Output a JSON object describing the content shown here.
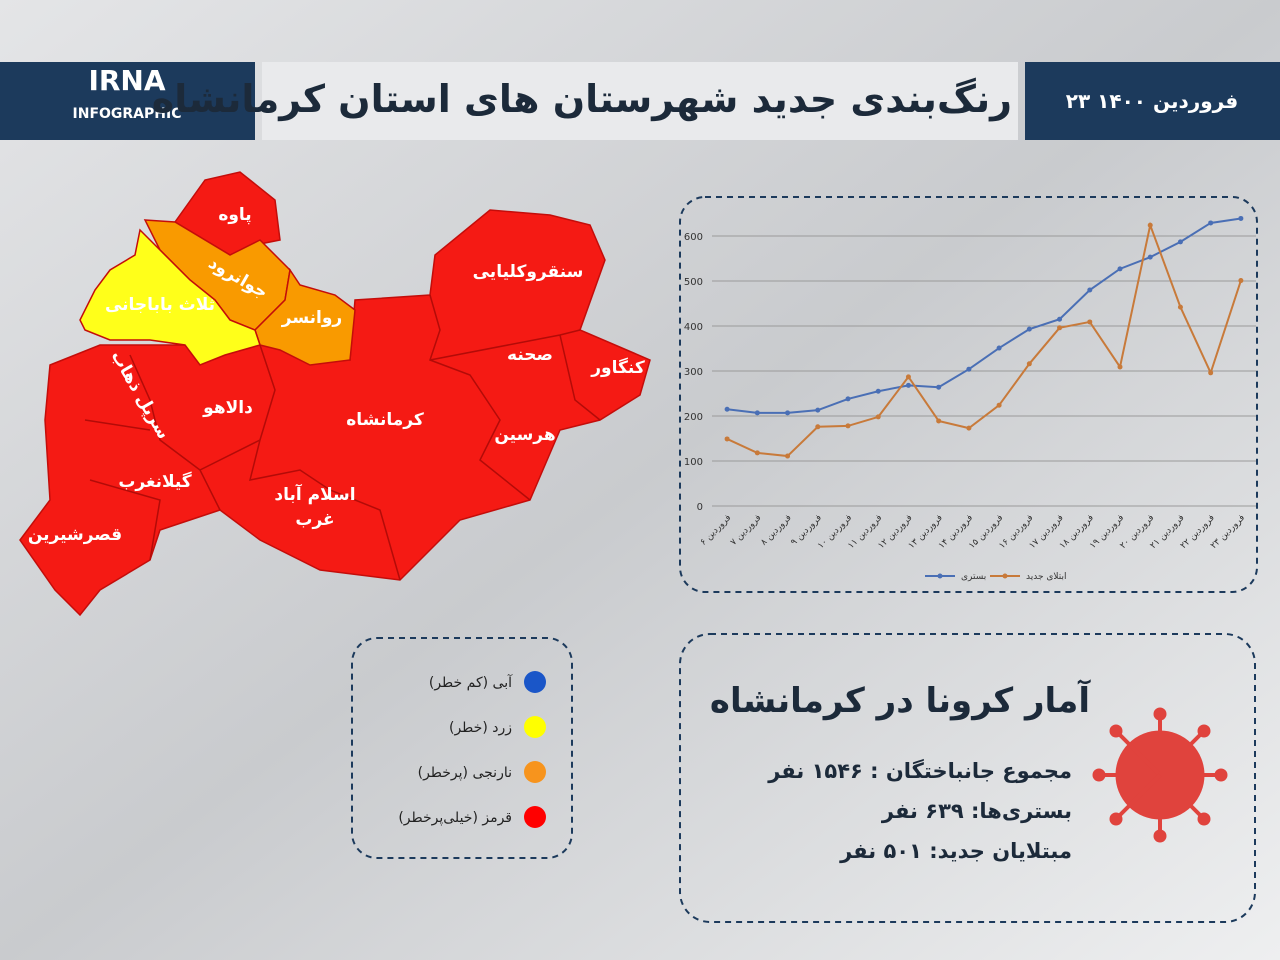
{
  "header": {
    "logo": "IRNA",
    "logo_sub": "INFOGRAPHIC",
    "title": "رنگ‌بندی جدید شهرستان های استان کرمانشاه",
    "date": "۲۳ فروردین ۱۴۰۰"
  },
  "map": {
    "labels": [
      "پاوه",
      "جوانرود",
      "ثلاث باباجانی",
      "روانسر",
      "سنقروکلیایی",
      "صحنه",
      "کنگاور",
      "سرپل ذهاب",
      "دالاهو",
      "کرمانشاه",
      "هرسین",
      "گیلانغرب",
      "اسلام آباد",
      "غرب",
      "قصرشیرین"
    ]
  },
  "legend": {
    "items": [
      {
        "label": "آبی (کم خطر)",
        "color": "#1a56c8"
      },
      {
        "label": "زرد (خطر)",
        "color": "#ffff00"
      },
      {
        "label": "نارنجی (پرخطر)",
        "color": "#f7941d"
      },
      {
        "label": "قرمز (خیلی‌پرخطر)",
        "color": "#ff0000"
      }
    ]
  },
  "chart_data": {
    "type": "line",
    "categories": [
      "۶ فروردین",
      "۷ فروردین",
      "۸ فروردین",
      "۹ فروردین",
      "۱۰ فروردین",
      "۱۱ فروردین",
      "۱۲ فروردین",
      "۱۳ فروردین",
      "۱۴ فروردین",
      "۱۵ فروردین",
      "۱۶ فروردین",
      "۱۷ فروردین",
      "۱۸ فروردین",
      "۱۹ فروردین",
      "۲۰ فروردین",
      "۲۱ فروردین",
      "۲۲ فروردین",
      "۲۳ فروردین"
    ],
    "series": [
      {
        "name": "بستری",
        "color": "#4a6fb5",
        "values": [
          215,
          207,
          207,
          213,
          238,
          255,
          268,
          264,
          304,
          351,
          393,
          415,
          480,
          527,
          553,
          587,
          629,
          639
        ]
      },
      {
        "name": "ابتلای جدید",
        "color": "#c87a3a",
        "values": [
          149,
          118,
          111,
          176,
          178,
          198,
          287,
          189,
          173,
          224,
          316,
          396,
          409,
          309,
          624,
          442,
          296,
          501
        ]
      }
    ],
    "ylim": [
      0,
      600
    ],
    "yticks": [
      0,
      100,
      200,
      300,
      400,
      500,
      600
    ],
    "grid": true,
    "legend": "bottom"
  },
  "stats": {
    "title": "آمار کرونا در کرمانشاه",
    "lines": [
      "مجموع جانباختگان : ۱۵۴۶ نفر",
      "بستری‌ها: ۶۳۹ نفر",
      "مبتلایان جدید: ۵۰۱ نفر"
    ]
  }
}
